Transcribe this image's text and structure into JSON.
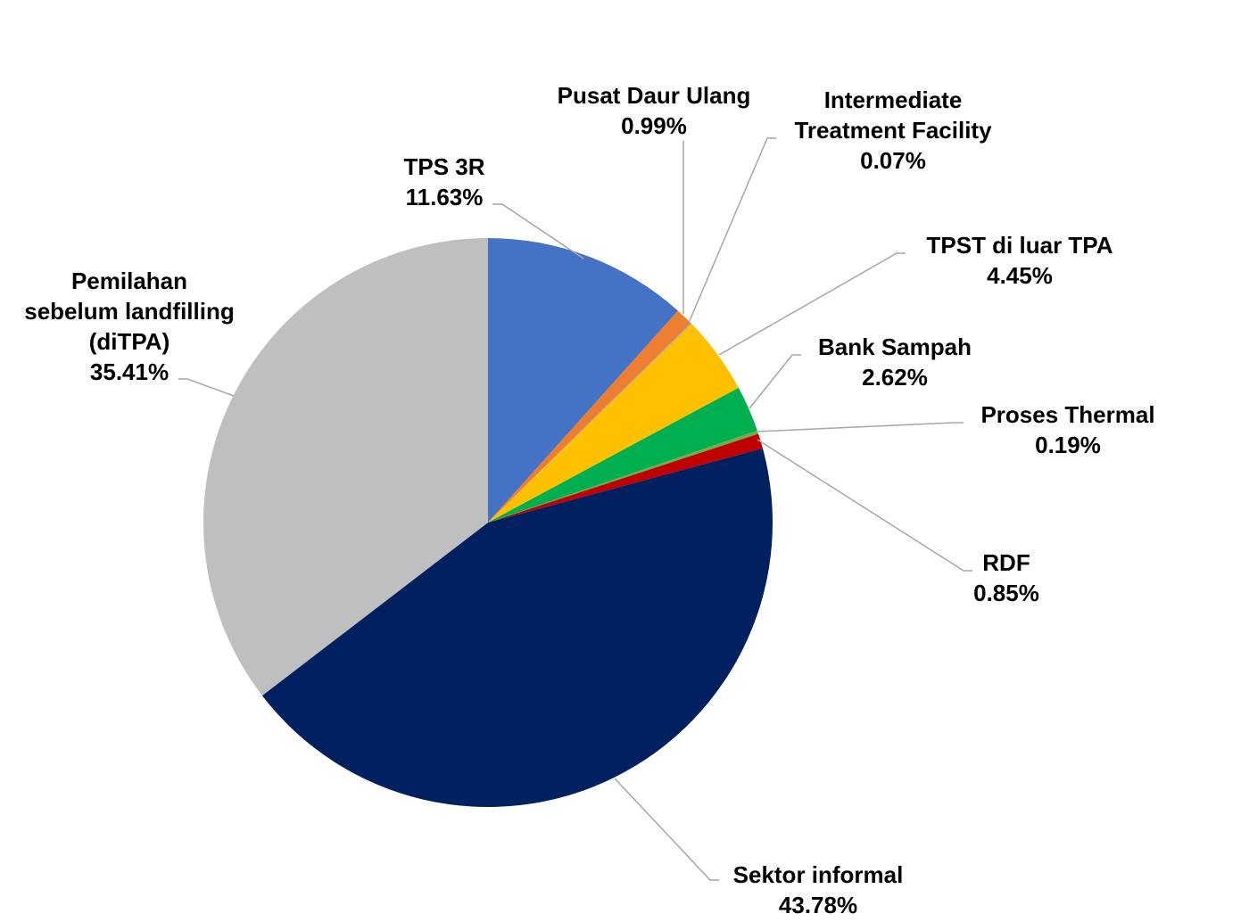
{
  "chart_data": {
    "type": "pie",
    "title": "",
    "start_angle_deg": 0,
    "direction": "clockwise",
    "slices": [
      {
        "label_lines": [
          "TPS 3R"
        ],
        "value": 11.63,
        "value_label": "11.63%",
        "color": "#4472C4"
      },
      {
        "label_lines": [
          "Pusat Daur Ulang"
        ],
        "value": 0.99,
        "value_label": "0.99%",
        "color": "#ED7D31"
      },
      {
        "label_lines": [
          "Intermediate",
          "Treatment Facility"
        ],
        "value": 0.07,
        "value_label": "0.07%",
        "color": "#A5A5A5"
      },
      {
        "label_lines": [
          "TPST di luar TPA"
        ],
        "value": 4.45,
        "value_label": "4.45%",
        "color": "#FFC000"
      },
      {
        "label_lines": [
          "Bank Sampah"
        ],
        "value": 2.62,
        "value_label": "2.62%",
        "color": "#00B050"
      },
      {
        "label_lines": [
          "Proses Thermal"
        ],
        "value": 0.19,
        "value_label": "0.19%",
        "color": "#70AD47"
      },
      {
        "label_lines": [
          "RDF"
        ],
        "value": 0.85,
        "value_label": "0.85%",
        "color": "#C00000"
      },
      {
        "label_lines": [
          "Sektor informal"
        ],
        "value": 43.78,
        "value_label": "43.78%",
        "color": "#002060"
      },
      {
        "label_lines": [
          "Pemilahan",
          "sebelum landfilling",
          "(diTPA)"
        ],
        "value": 35.41,
        "value_label": "35.41%",
        "color": "#BFBFBF"
      }
    ]
  }
}
